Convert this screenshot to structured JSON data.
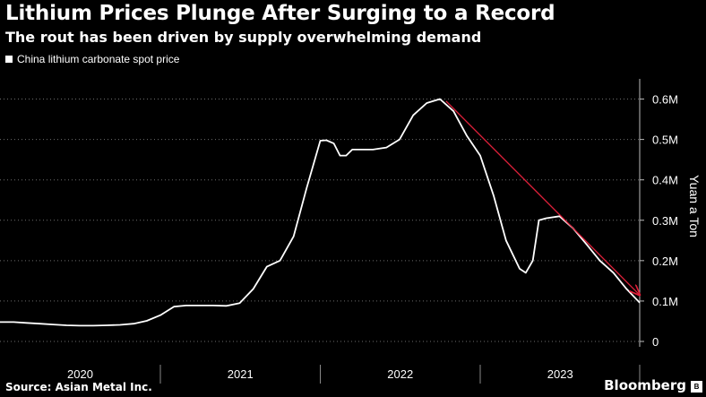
{
  "header": {
    "title": "Lithium Prices Plunge After Surging to a Record",
    "subtitle": "The rout has been driven by supply overwhelming demand"
  },
  "footer": {
    "source": "Source: Asian Metal Inc.",
    "brand": "Bloomberg"
  },
  "colors": {
    "background": "#000000",
    "series": "#ffffff",
    "trend_arrow": "#e0203a",
    "grid": "#6e6e6e"
  },
  "chart_data": {
    "type": "line",
    "title": "Lithium Prices Plunge After Surging to a Record",
    "subtitle": "The rout has been driven by supply overwhelming demand",
    "xlabel": "",
    "ylabel": "Yuan a Ton",
    "ylim": [
      0,
      650000
    ],
    "xlim": [
      "2020-01-01",
      "2023-12-31"
    ],
    "x_tick_labels": [
      "2020",
      "2021",
      "2022",
      "2023"
    ],
    "y_ticks": [
      0,
      100000,
      200000,
      300000,
      400000,
      500000,
      600000
    ],
    "y_tick_labels": [
      "0",
      "0.1M",
      "0.2M",
      "0.3M",
      "0.4M",
      "0.5M",
      "0.6M"
    ],
    "grid": "horizontal dotted",
    "legend_position": "top-left",
    "series": [
      {
        "name": "China lithium carbonate spot price",
        "color": "#ffffff",
        "points": [
          [
            "2020-01-01",
            48000
          ],
          [
            "2020-02-01",
            48000
          ],
          [
            "2020-03-01",
            46000
          ],
          [
            "2020-04-01",
            44000
          ],
          [
            "2020-05-01",
            42000
          ],
          [
            "2020-06-01",
            40000
          ],
          [
            "2020-07-01",
            39000
          ],
          [
            "2020-08-01",
            39000
          ],
          [
            "2020-09-01",
            40000
          ],
          [
            "2020-10-01",
            41000
          ],
          [
            "2020-11-01",
            44000
          ],
          [
            "2020-12-01",
            51000
          ],
          [
            "2021-01-01",
            65000
          ],
          [
            "2021-02-01",
            86000
          ],
          [
            "2021-03-01",
            89000
          ],
          [
            "2021-04-01",
            89000
          ],
          [
            "2021-05-01",
            89000
          ],
          [
            "2021-06-01",
            88000
          ],
          [
            "2021-07-01",
            95000
          ],
          [
            "2021-08-01",
            130000
          ],
          [
            "2021-09-01",
            185000
          ],
          [
            "2021-10-01",
            200000
          ],
          [
            "2021-11-01",
            260000
          ],
          [
            "2021-12-01",
            380000
          ],
          [
            "2022-01-01",
            497000
          ],
          [
            "2022-01-15",
            498000
          ],
          [
            "2022-02-01",
            490000
          ],
          [
            "2022-02-15",
            460000
          ],
          [
            "2022-03-01",
            460000
          ],
          [
            "2022-03-15",
            475000
          ],
          [
            "2022-04-01",
            475000
          ],
          [
            "2022-05-01",
            475000
          ],
          [
            "2022-06-01",
            480000
          ],
          [
            "2022-07-01",
            500000
          ],
          [
            "2022-08-01",
            560000
          ],
          [
            "2022-09-01",
            590000
          ],
          [
            "2022-10-01",
            600000
          ],
          [
            "2022-11-01",
            570000
          ],
          [
            "2022-12-01",
            510000
          ],
          [
            "2023-01-01",
            460000
          ],
          [
            "2023-02-01",
            360000
          ],
          [
            "2023-03-01",
            250000
          ],
          [
            "2023-04-01",
            180000
          ],
          [
            "2023-04-15",
            170000
          ],
          [
            "2023-05-01",
            200000
          ],
          [
            "2023-05-15",
            300000
          ],
          [
            "2023-06-01",
            305000
          ],
          [
            "2023-07-01",
            310000
          ],
          [
            "2023-08-01",
            280000
          ],
          [
            "2023-09-01",
            240000
          ],
          [
            "2023-10-01",
            200000
          ],
          [
            "2023-11-01",
            170000
          ],
          [
            "2023-12-01",
            130000
          ],
          [
            "2023-12-31",
            96000
          ]
        ]
      }
    ],
    "annotation": {
      "type": "arrow",
      "color": "#e0203a",
      "from": [
        "2022-10-15",
        595000
      ],
      "to": [
        "2023-12-31",
        115000
      ]
    }
  }
}
